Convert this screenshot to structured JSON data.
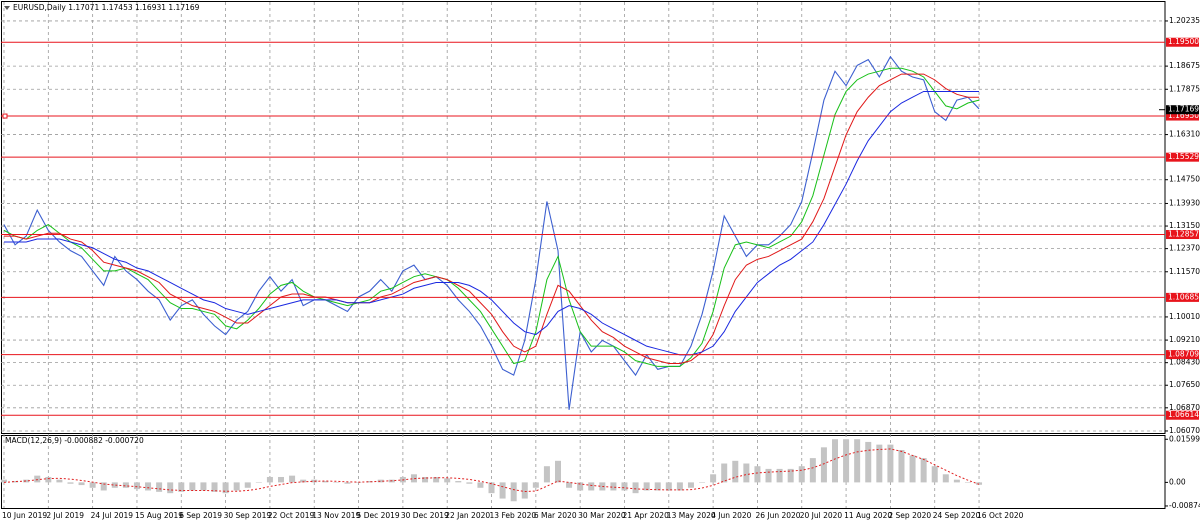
{
  "chart_data": [
    {
      "type": "line",
      "title": "EURUSD,Daily  1.17071 1.17453 1.16931 1.17169",
      "grid": true,
      "categories": [
        "10 Jun 2019",
        null,
        null,
        null,
        "2 Jul 2019",
        null,
        null,
        null,
        "24 Jul 2019",
        null,
        null,
        null,
        "15 Aug 2019",
        null,
        null,
        null,
        "6 Sep 2019",
        null,
        null,
        null,
        "30 Sep 2019",
        null,
        null,
        null,
        "22 Oct 2019",
        null,
        null,
        null,
        "13 Nov 2019",
        null,
        null,
        null,
        "5 Dec 2019",
        null,
        null,
        null,
        "30 Dec 2019",
        null,
        null,
        null,
        "22 Jan 2020",
        null,
        null,
        null,
        "13 Feb 2020",
        null,
        null,
        null,
        "6 Mar 2020",
        null,
        null,
        null,
        "30 Mar 2020",
        null,
        null,
        null,
        "21 Apr 2020",
        null,
        null,
        null,
        "13 May 2020",
        null,
        null,
        null,
        "4 Jun 2020",
        null,
        null,
        null,
        "26 Jun 2020",
        null,
        null,
        null,
        "20 Jul 2020",
        null,
        null,
        null,
        "11 Aug 2020",
        null,
        null,
        null,
        "2 Sep 2020",
        null,
        null,
        null,
        "24 Sep 2020",
        null,
        null,
        null,
        "16 Oct 2020"
      ],
      "ylim": [
        1.06,
        1.2089
      ],
      "yticks": [
        1.20235,
        1.18675,
        1.17875,
        {
          "value": 1.1631,
          "label": "1.16310"
        },
        {
          "value": 1.1475,
          "label": "1.14750"
        },
        {
          "value": 1.1393,
          "label": "1.13930"
        },
        {
          "value": 1.1315,
          "label": "1.13150"
        },
        {
          "value": 1.1237,
          "label": "1.12370"
        },
        {
          "value": 1.1157,
          "label": "1.11570"
        },
        {
          "value": 1.1001,
          "label": "1.10010"
        },
        {
          "value": 1.0921,
          "label": "1.09210"
        },
        {
          "value": 1.0843,
          "label": "1.08430"
        },
        {
          "value": 1.0765,
          "label": "1.07650"
        },
        {
          "value": 1.0687,
          "label": "1.06870"
        },
        {
          "value": 1.0607,
          "label": "1.06070"
        }
      ],
      "levels": [
        {
          "value": 1.195,
          "label": "1.19500"
        },
        {
          "value": 1.1695,
          "label": "1.16950"
        },
        {
          "value": 1.15529,
          "label": "1.15529"
        },
        {
          "value": 1.12857,
          "label": "1.12857"
        },
        {
          "value": 1.10685,
          "label": "1.10685"
        },
        {
          "value": 1.08709,
          "label": "1.08709"
        },
        {
          "value": 1.06614,
          "label": "1.06614"
        }
      ],
      "level_color": "#e8141c",
      "current": {
        "value": 1.17169,
        "label": "1.17169"
      },
      "series": [
        {
          "color": "#3c5fd0",
          "values": [
            1.132,
            1.125,
            1.128,
            1.137,
            1.13,
            1.126,
            1.123,
            1.121,
            1.116,
            1.111,
            1.121,
            1.116,
            1.113,
            1.109,
            1.106,
            1.099,
            1.104,
            1.106,
            1.101,
            1.097,
            1.094,
            1.099,
            1.102,
            1.109,
            1.114,
            1.109,
            1.113,
            1.104,
            1.106,
            1.106,
            1.104,
            1.102,
            1.107,
            1.109,
            1.113,
            1.109,
            1.116,
            1.118,
            1.113,
            1.114,
            1.111,
            1.106,
            1.102,
            1.097,
            1.09,
            1.082,
            1.08,
            1.092,
            1.113,
            1.14,
            1.123,
            1.068,
            1.095,
            1.088,
            1.092,
            1.09,
            1.085,
            1.08,
            1.087,
            1.082,
            1.083,
            1.083,
            1.09,
            1.101,
            1.116,
            1.135,
            1.128,
            1.121,
            1.125,
            1.125,
            1.128,
            1.132,
            1.14,
            1.157,
            1.175,
            1.185,
            1.18,
            1.187,
            1.189,
            1.183,
            1.19,
            1.185,
            1.183,
            1.182,
            1.171,
            1.168,
            1.175,
            1.176,
            1.172
          ]
        },
        {
          "color": "#18c018",
          "values": [
            1.13,
            1.128,
            1.127,
            1.13,
            1.132,
            1.129,
            1.126,
            1.124,
            1.12,
            1.116,
            1.116,
            1.117,
            1.115,
            1.113,
            1.109,
            1.105,
            1.103,
            1.103,
            1.102,
            1.101,
            1.097,
            1.096,
            1.099,
            1.103,
            1.108,
            1.111,
            1.112,
            1.109,
            1.107,
            1.106,
            1.105,
            1.104,
            1.105,
            1.106,
            1.109,
            1.11,
            1.112,
            1.114,
            1.115,
            1.114,
            1.113,
            1.11,
            1.106,
            1.102,
            1.096,
            1.09,
            1.084,
            1.085,
            1.095,
            1.113,
            1.121,
            1.106,
            1.095,
            1.09,
            1.09,
            1.09,
            1.088,
            1.085,
            1.084,
            1.083,
            1.083,
            1.083,
            1.086,
            1.091,
            1.102,
            1.117,
            1.125,
            1.126,
            1.125,
            1.124,
            1.126,
            1.128,
            1.133,
            1.142,
            1.156,
            1.17,
            1.178,
            1.182,
            1.184,
            1.185,
            1.186,
            1.186,
            1.185,
            1.183,
            1.178,
            1.173,
            1.172,
            1.174,
            1.175
          ]
        },
        {
          "color": "#e01818",
          "values": [
            1.128,
            1.128,
            1.127,
            1.128,
            1.129,
            1.129,
            1.127,
            1.126,
            1.123,
            1.119,
            1.118,
            1.117,
            1.116,
            1.114,
            1.112,
            1.108,
            1.106,
            1.104,
            1.103,
            1.102,
            1.1,
            1.098,
            1.098,
            1.101,
            1.104,
            1.107,
            1.108,
            1.108,
            1.107,
            1.107,
            1.106,
            1.105,
            1.105,
            1.105,
            1.107,
            1.108,
            1.11,
            1.112,
            1.113,
            1.114,
            1.113,
            1.111,
            1.109,
            1.105,
            1.101,
            1.095,
            1.09,
            1.088,
            1.09,
            1.101,
            1.111,
            1.109,
            1.104,
            1.099,
            1.095,
            1.093,
            1.09,
            1.088,
            1.086,
            1.085,
            1.084,
            1.084,
            1.085,
            1.088,
            1.094,
            1.104,
            1.113,
            1.118,
            1.12,
            1.121,
            1.123,
            1.125,
            1.127,
            1.133,
            1.141,
            1.152,
            1.163,
            1.171,
            1.176,
            1.18,
            1.182,
            1.184,
            1.184,
            1.184,
            1.182,
            1.179,
            1.177,
            1.176,
            1.176
          ]
        },
        {
          "color": "#1a28e0",
          "values": [
            1.126,
            1.126,
            1.126,
            1.127,
            1.127,
            1.127,
            1.126,
            1.125,
            1.124,
            1.122,
            1.12,
            1.119,
            1.117,
            1.116,
            1.114,
            1.112,
            1.11,
            1.108,
            1.106,
            1.105,
            1.103,
            1.102,
            1.101,
            1.102,
            1.103,
            1.104,
            1.105,
            1.106,
            1.106,
            1.106,
            1.106,
            1.105,
            1.105,
            1.105,
            1.106,
            1.107,
            1.108,
            1.11,
            1.111,
            1.112,
            1.112,
            1.112,
            1.111,
            1.109,
            1.106,
            1.102,
            1.098,
            1.095,
            1.094,
            1.097,
            1.102,
            1.104,
            1.103,
            1.101,
            1.098,
            1.096,
            1.094,
            1.092,
            1.09,
            1.089,
            1.088,
            1.087,
            1.087,
            1.088,
            1.09,
            1.095,
            1.102,
            1.107,
            1.112,
            1.115,
            1.118,
            1.12,
            1.123,
            1.126,
            1.132,
            1.139,
            1.146,
            1.154,
            1.161,
            1.166,
            1.171,
            1.174,
            1.176,
            1.178,
            1.178,
            1.178,
            1.178,
            1.178,
            1.178
          ]
        }
      ]
    },
    {
      "type": "macd",
      "title": "MACD(12,26,9) -0.000882 -0.000720",
      "ylim": [
        -0.0095,
        0.0172
      ],
      "yticks": [
        0.015993,
        {
          "value": 0,
          "label": "0.00"
        },
        -0.008748
      ],
      "series": [
        {
          "style": "bar",
          "color": "#c4c4c4",
          "values": [
            0.001,
            0.0005,
            0.001,
            0.0025,
            0.002,
            0.001,
            -0.0005,
            -0.001,
            -0.002,
            -0.003,
            -0.002,
            -0.002,
            -0.0025,
            -0.003,
            -0.0035,
            -0.004,
            -0.0035,
            -0.003,
            -0.003,
            -0.0035,
            -0.004,
            -0.003,
            -0.002,
            0,
            0.002,
            0.002,
            0.0025,
            0.001,
            0.001,
            0.0005,
            0,
            -0.0005,
            0,
            0.0005,
            0.001,
            0.001,
            0.002,
            0.003,
            0.002,
            0.002,
            0.0015,
            0.0005,
            -0.0005,
            -0.002,
            -0.004,
            -0.006,
            -0.007,
            -0.006,
            -0.002,
            0.006,
            0.008,
            -0.002,
            -0.003,
            -0.003,
            -0.003,
            -0.003,
            -0.003,
            -0.004,
            -0.003,
            -0.003,
            -0.003,
            -0.003,
            -0.002,
            0,
            0.003,
            0.007,
            0.008,
            0.007,
            0.006,
            0.005,
            0.005,
            0.005,
            0.006,
            0.009,
            0.013,
            0.016,
            0.016,
            0.016,
            0.015,
            0.014,
            0.014,
            0.012,
            0.01,
            0.009,
            0.006,
            0.003,
            0.001,
            0,
            -0.000882
          ]
        },
        {
          "style": "dotted",
          "color": "#e02020",
          "values": [
            0,
            0.0003,
            0.0005,
            0.001,
            0.0014,
            0.0015,
            0.0012,
            0.0007,
            0.0001,
            -0.0006,
            -0.001,
            -0.0013,
            -0.0016,
            -0.002,
            -0.0024,
            -0.0028,
            -0.003,
            -0.003,
            -0.003,
            -0.0031,
            -0.0033,
            -0.0033,
            -0.003,
            -0.0024,
            -0.0015,
            -0.0008,
            -0.0001,
            0.0002,
            0.0004,
            0.0005,
            0.0004,
            0.0002,
            0.0001,
            0.0002,
            0.0004,
            0.0006,
            0.0009,
            0.0014,
            0.0016,
            0.0017,
            0.0017,
            0.0015,
            0.0011,
            0.0004,
            -0.0005,
            -0.0016,
            -0.0027,
            -0.0034,
            -0.0032,
            -0.0014,
            0.0005,
            0,
            -0.0006,
            -0.0011,
            -0.0015,
            -0.0018,
            -0.002,
            -0.0024,
            -0.0026,
            -0.0027,
            -0.0028,
            -0.0028,
            -0.0027,
            -0.0021,
            -0.0011,
            0.0005,
            0.0019,
            0.0029,
            0.0035,
            0.0038,
            0.004,
            0.0042,
            0.0045,
            0.0054,
            0.0069,
            0.0087,
            0.0102,
            0.0113,
            0.0119,
            0.0122,
            0.0124,
            0.0115,
            0.01,
            0.0085,
            0.0065,
            0.0045,
            0.0025,
            0.0008,
            -0.00072
          ]
        }
      ]
    }
  ]
}
